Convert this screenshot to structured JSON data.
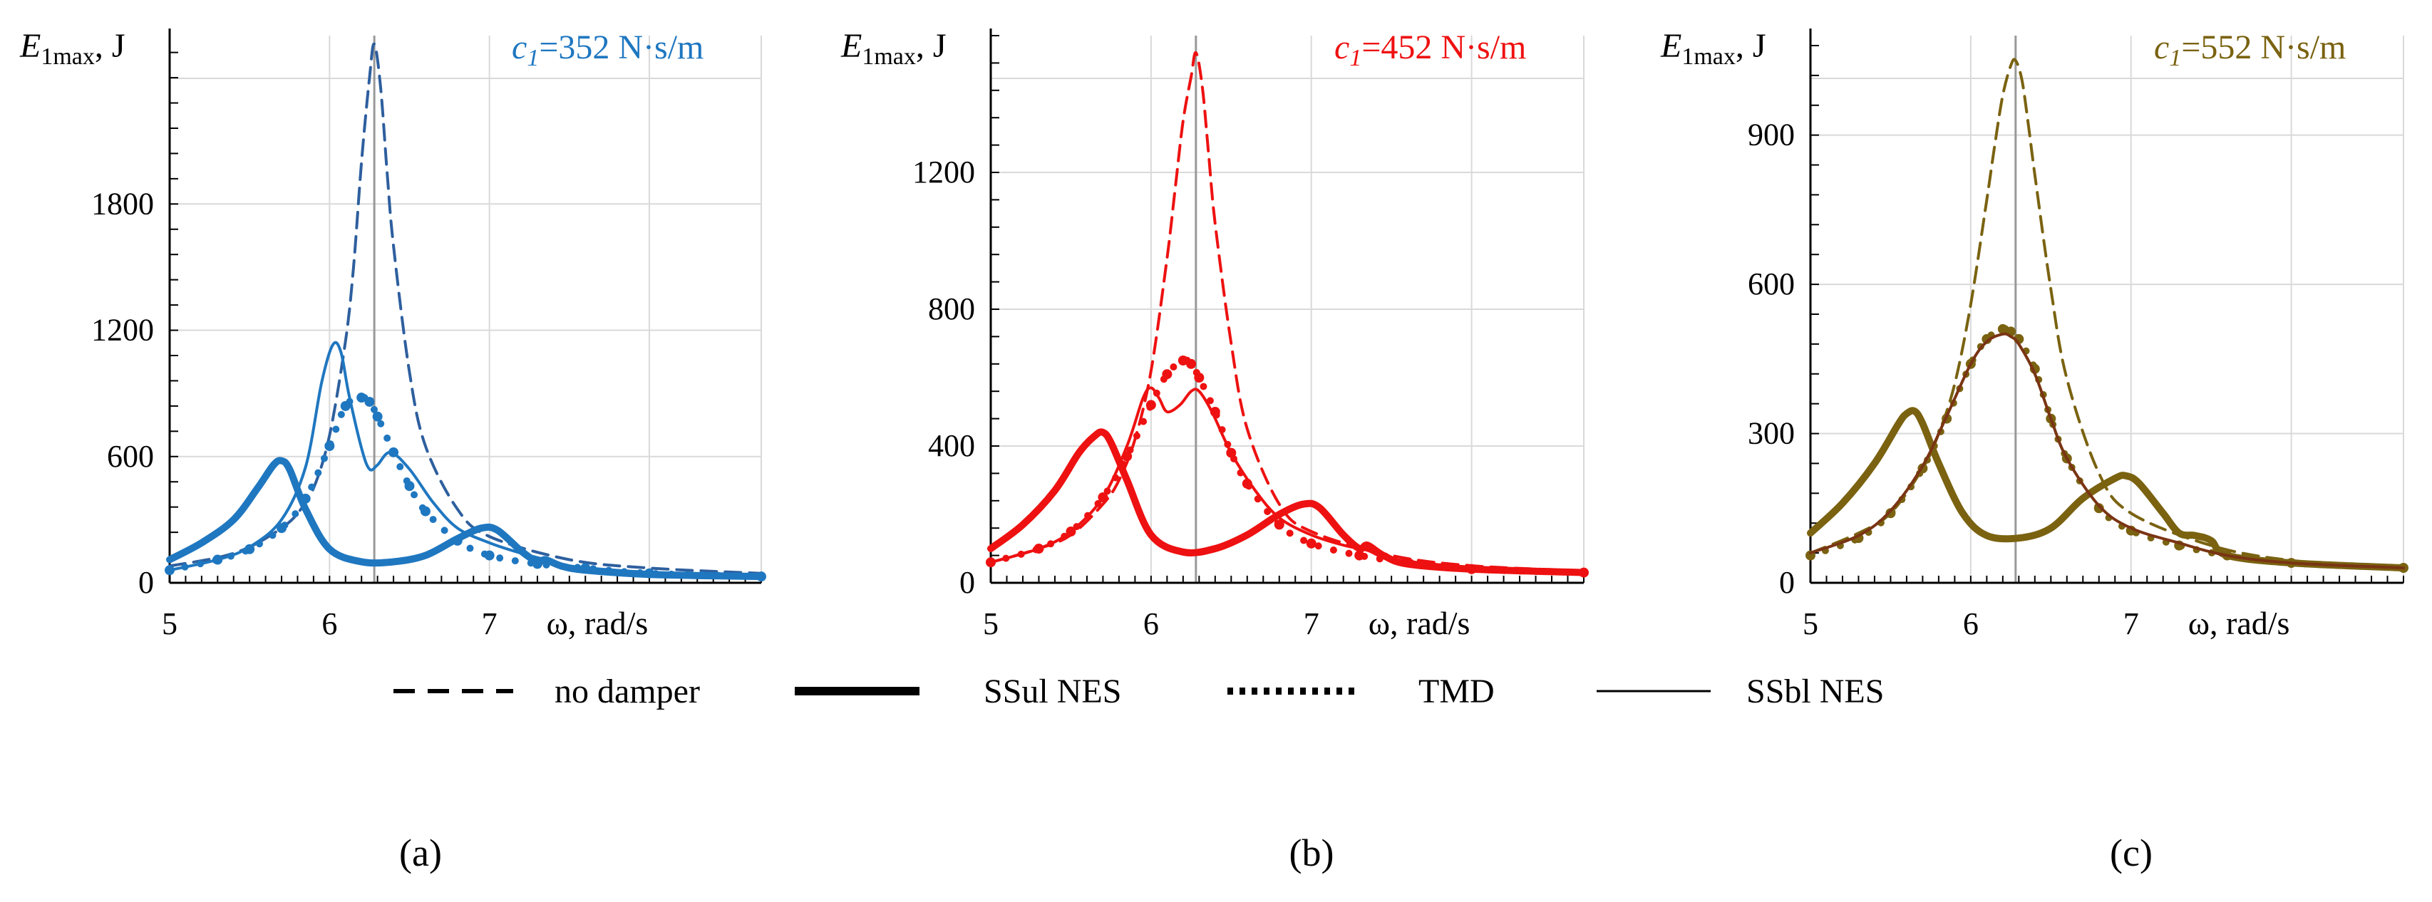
{
  "legend": [
    {
      "style": "dashed",
      "label": "no damper"
    },
    {
      "style": "thick",
      "label": "SSul NES"
    },
    {
      "style": "dotted",
      "label": "TMD"
    },
    {
      "style": "thin",
      "label": "SSbl NES"
    }
  ],
  "chart_data": [
    {
      "type": "line",
      "panel_label": "(a)",
      "param_label": "=352 N·s/m",
      "param_symbol": "c",
      "param_sub": "1",
      "color": "#1f77c0",
      "ylabel_symbol": "E",
      "ylabel_sub": "1max",
      "ylabel_unit": ", J",
      "xlabel": "ω, rad/s",
      "xlim": [
        5,
        8.7
      ],
      "ylim": [
        0,
        2600
      ],
      "x_ticks": [
        5,
        6,
        7
      ],
      "y_ticks": [
        0,
        600,
        1200,
        1800
      ],
      "resonance_x": 6.28,
      "series": [
        {
          "name": "no damper",
          "style": "dashed",
          "x": [
            5.0,
            5.3,
            5.5,
            5.7,
            5.8,
            5.9,
            6.0,
            6.1,
            6.15,
            6.2,
            6.25,
            6.28,
            6.32,
            6.36,
            6.4,
            6.5,
            6.6,
            6.8,
            7.0,
            7.5,
            8.0,
            8.7
          ],
          "y": [
            80,
            120,
            170,
            260,
            330,
            450,
            700,
            1150,
            1500,
            2000,
            2400,
            2560,
            2350,
            1950,
            1600,
            1000,
            650,
            350,
            220,
            110,
            70,
            45
          ]
        },
        {
          "name": "SSul NES",
          "style": "thick",
          "x": [
            5.0,
            5.2,
            5.4,
            5.55,
            5.65,
            5.7,
            5.75,
            5.85,
            6.0,
            6.2,
            6.4,
            6.6,
            6.8,
            6.95,
            7.05,
            7.2,
            7.3,
            7.35,
            7.45,
            7.6,
            8.0,
            8.7
          ],
          "y": [
            110,
            190,
            300,
            450,
            560,
            580,
            540,
            350,
            160,
            100,
            100,
            130,
            210,
            260,
            250,
            150,
            100,
            110,
            80,
            60,
            40,
            30
          ]
        },
        {
          "name": "TMD",
          "style": "dotted",
          "x": [
            5.0,
            5.3,
            5.5,
            5.7,
            5.85,
            6.0,
            6.1,
            6.2,
            6.25,
            6.3,
            6.4,
            6.5,
            6.6,
            6.8,
            7.0,
            7.3,
            7.6,
            8.0,
            8.7
          ],
          "y": [
            60,
            110,
            160,
            260,
            400,
            650,
            840,
            880,
            860,
            790,
            620,
            460,
            340,
            200,
            130,
            90,
            70,
            45,
            30
          ]
        },
        {
          "name": "SSbl NES",
          "style": "thin",
          "x": [
            5.0,
            5.3,
            5.5,
            5.7,
            5.85,
            5.95,
            6.02,
            6.07,
            6.12,
            6.2,
            6.25,
            6.3,
            6.38,
            6.5,
            6.65,
            6.8,
            7.0,
            7.2,
            7.35,
            7.5,
            8.0,
            8.7
          ],
          "y": [
            60,
            110,
            170,
            300,
            550,
            950,
            1130,
            1100,
            900,
            640,
            540,
            560,
            620,
            540,
            380,
            260,
            190,
            140,
            110,
            80,
            50,
            35
          ]
        }
      ]
    },
    {
      "type": "line",
      "panel_label": "(b)",
      "param_label": "=452 N·s/m",
      "param_symbol": "c",
      "param_sub": "1",
      "color": "#ee1111",
      "ylabel_symbol": "E",
      "ylabel_sub": "1max",
      "ylabel_unit": ", J",
      "xlabel": "ω, rad/s",
      "xlim": [
        5,
        8.7
      ],
      "ylim": [
        0,
        1600
      ],
      "x_ticks": [
        5,
        6,
        7
      ],
      "y_ticks": [
        0,
        400,
        800,
        1200
      ],
      "resonance_x": 6.28,
      "series": [
        {
          "name": "no damper",
          "style": "dashed",
          "x": [
            5.0,
            5.3,
            5.5,
            5.7,
            5.8,
            5.9,
            6.0,
            6.1,
            6.15,
            6.2,
            6.25,
            6.28,
            6.32,
            6.36,
            6.4,
            6.5,
            6.6,
            6.8,
            7.0,
            7.5,
            8.0,
            8.7
          ],
          "y": [
            60,
            100,
            140,
            230,
            300,
            420,
            620,
            950,
            1150,
            1350,
            1480,
            1550,
            1450,
            1250,
            1050,
            700,
            450,
            230,
            150,
            80,
            50,
            35
          ]
        },
        {
          "name": "SSul NES",
          "style": "thick",
          "x": [
            5.0,
            5.2,
            5.4,
            5.55,
            5.65,
            5.7,
            5.75,
            5.85,
            6.0,
            6.2,
            6.4,
            6.6,
            6.8,
            6.95,
            7.05,
            7.2,
            7.3,
            7.35,
            7.45,
            7.6,
            8.0,
            8.7
          ],
          "y": [
            100,
            170,
            270,
            380,
            430,
            440,
            410,
            300,
            140,
            90,
            100,
            140,
            200,
            230,
            220,
            140,
            100,
            110,
            80,
            55,
            40,
            30
          ]
        },
        {
          "name": "TMD",
          "style": "dotted",
          "x": [
            5.0,
            5.3,
            5.5,
            5.7,
            5.85,
            6.0,
            6.1,
            6.2,
            6.25,
            6.3,
            6.4,
            6.5,
            6.6,
            6.8,
            7.0,
            7.3,
            7.6,
            8.0,
            8.7
          ],
          "y": [
            60,
            100,
            150,
            250,
            370,
            520,
            610,
            650,
            640,
            600,
            500,
            380,
            290,
            170,
            115,
            80,
            60,
            40,
            30
          ]
        },
        {
          "name": "SSbl NES",
          "style": "thin",
          "x": [
            5.0,
            5.3,
            5.5,
            5.7,
            5.85,
            5.95,
            6.0,
            6.05,
            6.1,
            6.18,
            6.25,
            6.3,
            6.38,
            6.5,
            6.65,
            6.8,
            7.0,
            7.2,
            7.35,
            7.5,
            8.0,
            8.7
          ],
          "y": [
            60,
            100,
            150,
            250,
            400,
            540,
            570,
            540,
            500,
            520,
            560,
            560,
            500,
            380,
            270,
            190,
            140,
            110,
            95,
            70,
            45,
            30
          ]
        }
      ]
    },
    {
      "type": "line",
      "panel_label": "(c)",
      "param_label": "=552 N·s/m",
      "param_symbol": "c",
      "param_sub": "1",
      "color": "#7a6210",
      "thin_color": "#7a3414",
      "ylabel_symbol": "E",
      "ylabel_sub": "1max",
      "ylabel_unit": ", J",
      "xlabel": "ω, rad/s",
      "xlim": [
        5,
        8.7
      ],
      "ylim": [
        0,
        1100
      ],
      "x_ticks": [
        5,
        6,
        7
      ],
      "y_ticks": [
        0,
        300,
        600,
        900
      ],
      "resonance_x": 6.28,
      "series": [
        {
          "name": "no damper",
          "style": "dashed",
          "x": [
            5.0,
            5.3,
            5.5,
            5.7,
            5.8,
            5.9,
            6.0,
            6.1,
            6.15,
            6.2,
            6.25,
            6.28,
            6.32,
            6.36,
            6.4,
            6.5,
            6.6,
            6.8,
            7.0,
            7.5,
            8.0,
            8.7
          ],
          "y": [
            60,
            100,
            140,
            230,
            300,
            400,
            560,
            770,
            880,
            980,
            1040,
            1050,
            1010,
            920,
            820,
            590,
            410,
            220,
            140,
            75,
            45,
            30
          ]
        },
        {
          "name": "SSul NES",
          "style": "thick",
          "x": [
            5.0,
            5.2,
            5.4,
            5.55,
            5.6,
            5.65,
            5.7,
            5.8,
            5.95,
            6.1,
            6.3,
            6.5,
            6.7,
            6.9,
            6.97,
            7.05,
            7.2,
            7.3,
            7.4,
            7.5,
            7.6,
            8.0,
            8.7
          ],
          "y": [
            100,
            160,
            240,
            320,
            340,
            345,
            320,
            240,
            140,
            95,
            90,
            110,
            170,
            210,
            215,
            200,
            140,
            100,
            95,
            85,
            55,
            40,
            30
          ]
        },
        {
          "name": "TMD",
          "style": "dotted",
          "x": [
            5.0,
            5.3,
            5.5,
            5.7,
            5.85,
            6.0,
            6.1,
            6.2,
            6.25,
            6.3,
            6.4,
            6.5,
            6.6,
            6.8,
            7.0,
            7.3,
            7.6,
            8.0,
            8.7
          ],
          "y": [
            55,
            90,
            140,
            230,
            330,
            440,
            490,
            510,
            505,
            490,
            430,
            330,
            250,
            150,
            105,
            75,
            55,
            40,
            30
          ]
        },
        {
          "name": "SSbl NES",
          "style": "thin",
          "x": [
            5.0,
            5.3,
            5.5,
            5.7,
            5.85,
            6.0,
            6.1,
            6.2,
            6.25,
            6.3,
            6.4,
            6.5,
            6.6,
            6.8,
            7.0,
            7.3,
            7.6,
            8.0,
            8.7
          ],
          "y": [
            60,
            95,
            145,
            235,
            335,
            440,
            485,
            500,
            495,
            480,
            420,
            330,
            250,
            155,
            110,
            80,
            55,
            40,
            30
          ]
        }
      ]
    }
  ]
}
